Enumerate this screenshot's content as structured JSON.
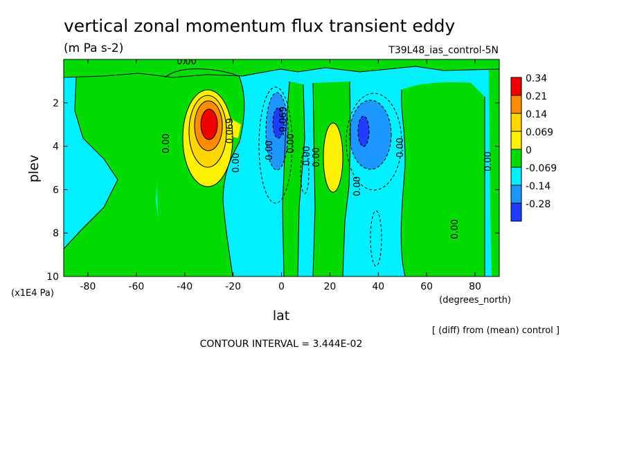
{
  "chart_data": {
    "type": "heatmap",
    "title": "vertical zonal momentum flux transient eddy",
    "units": "(m Pa s-2)",
    "run_label": "T39L48_ias_control-5N",
    "xlabel": "lat",
    "x_units": "(degrees_north)",
    "ylabel": "plev",
    "y_units": "(x1E4 Pa)",
    "xlim": [
      -90,
      90
    ],
    "ylim": [
      10,
      0
    ],
    "x_ticks": [
      "-80",
      "-60",
      "-40",
      "-20",
      "0",
      "20",
      "40",
      "60",
      "80"
    ],
    "y_ticks": [
      "2",
      "4",
      "6",
      "8",
      "10"
    ],
    "x_tick_values": [
      -80,
      -60,
      -40,
      -20,
      0,
      20,
      40,
      60,
      80
    ],
    "y_tick_values": [
      2,
      4,
      6,
      8,
      10
    ],
    "legend": {
      "placement": "right",
      "labels": [
        "0.34",
        "0.21",
        "0.14",
        "0.069",
        "0",
        "-0.069",
        "-0.14",
        "-0.28"
      ],
      "colors": [
        "#f00000",
        "#ff8c00",
        "#ffd700",
        "#fff200",
        "#00dc00",
        "#00f0ff",
        "#1e96ff",
        "#1e3cff"
      ]
    },
    "contour_labels": [
      "0.00",
      "0.00",
      "0.00",
      "0.00",
      "0.00",
      "0.00",
      "0.00",
      "0.069",
      "-0.069",
      "0.00",
      "0.00",
      "0.00",
      "0.00"
    ],
    "note": "[ (diff) from (mean) control ]",
    "contour_interval": "CONTOUR INTERVAL = 3.444E-02",
    "features": [
      {
        "name": "positive-maximum-sh",
        "lat": -30,
        "plev": 3.0,
        "value": 0.34
      },
      {
        "name": "positive-maximum-nh",
        "lat": 21,
        "plev": 4.0,
        "value": 0.14
      },
      {
        "name": "negative-minimum-eq",
        "lat": -1,
        "plev": 3.0,
        "value": -0.28
      },
      {
        "name": "negative-minimum-nh",
        "lat": 34,
        "plev": 3.5,
        "value": -0.28
      }
    ]
  }
}
